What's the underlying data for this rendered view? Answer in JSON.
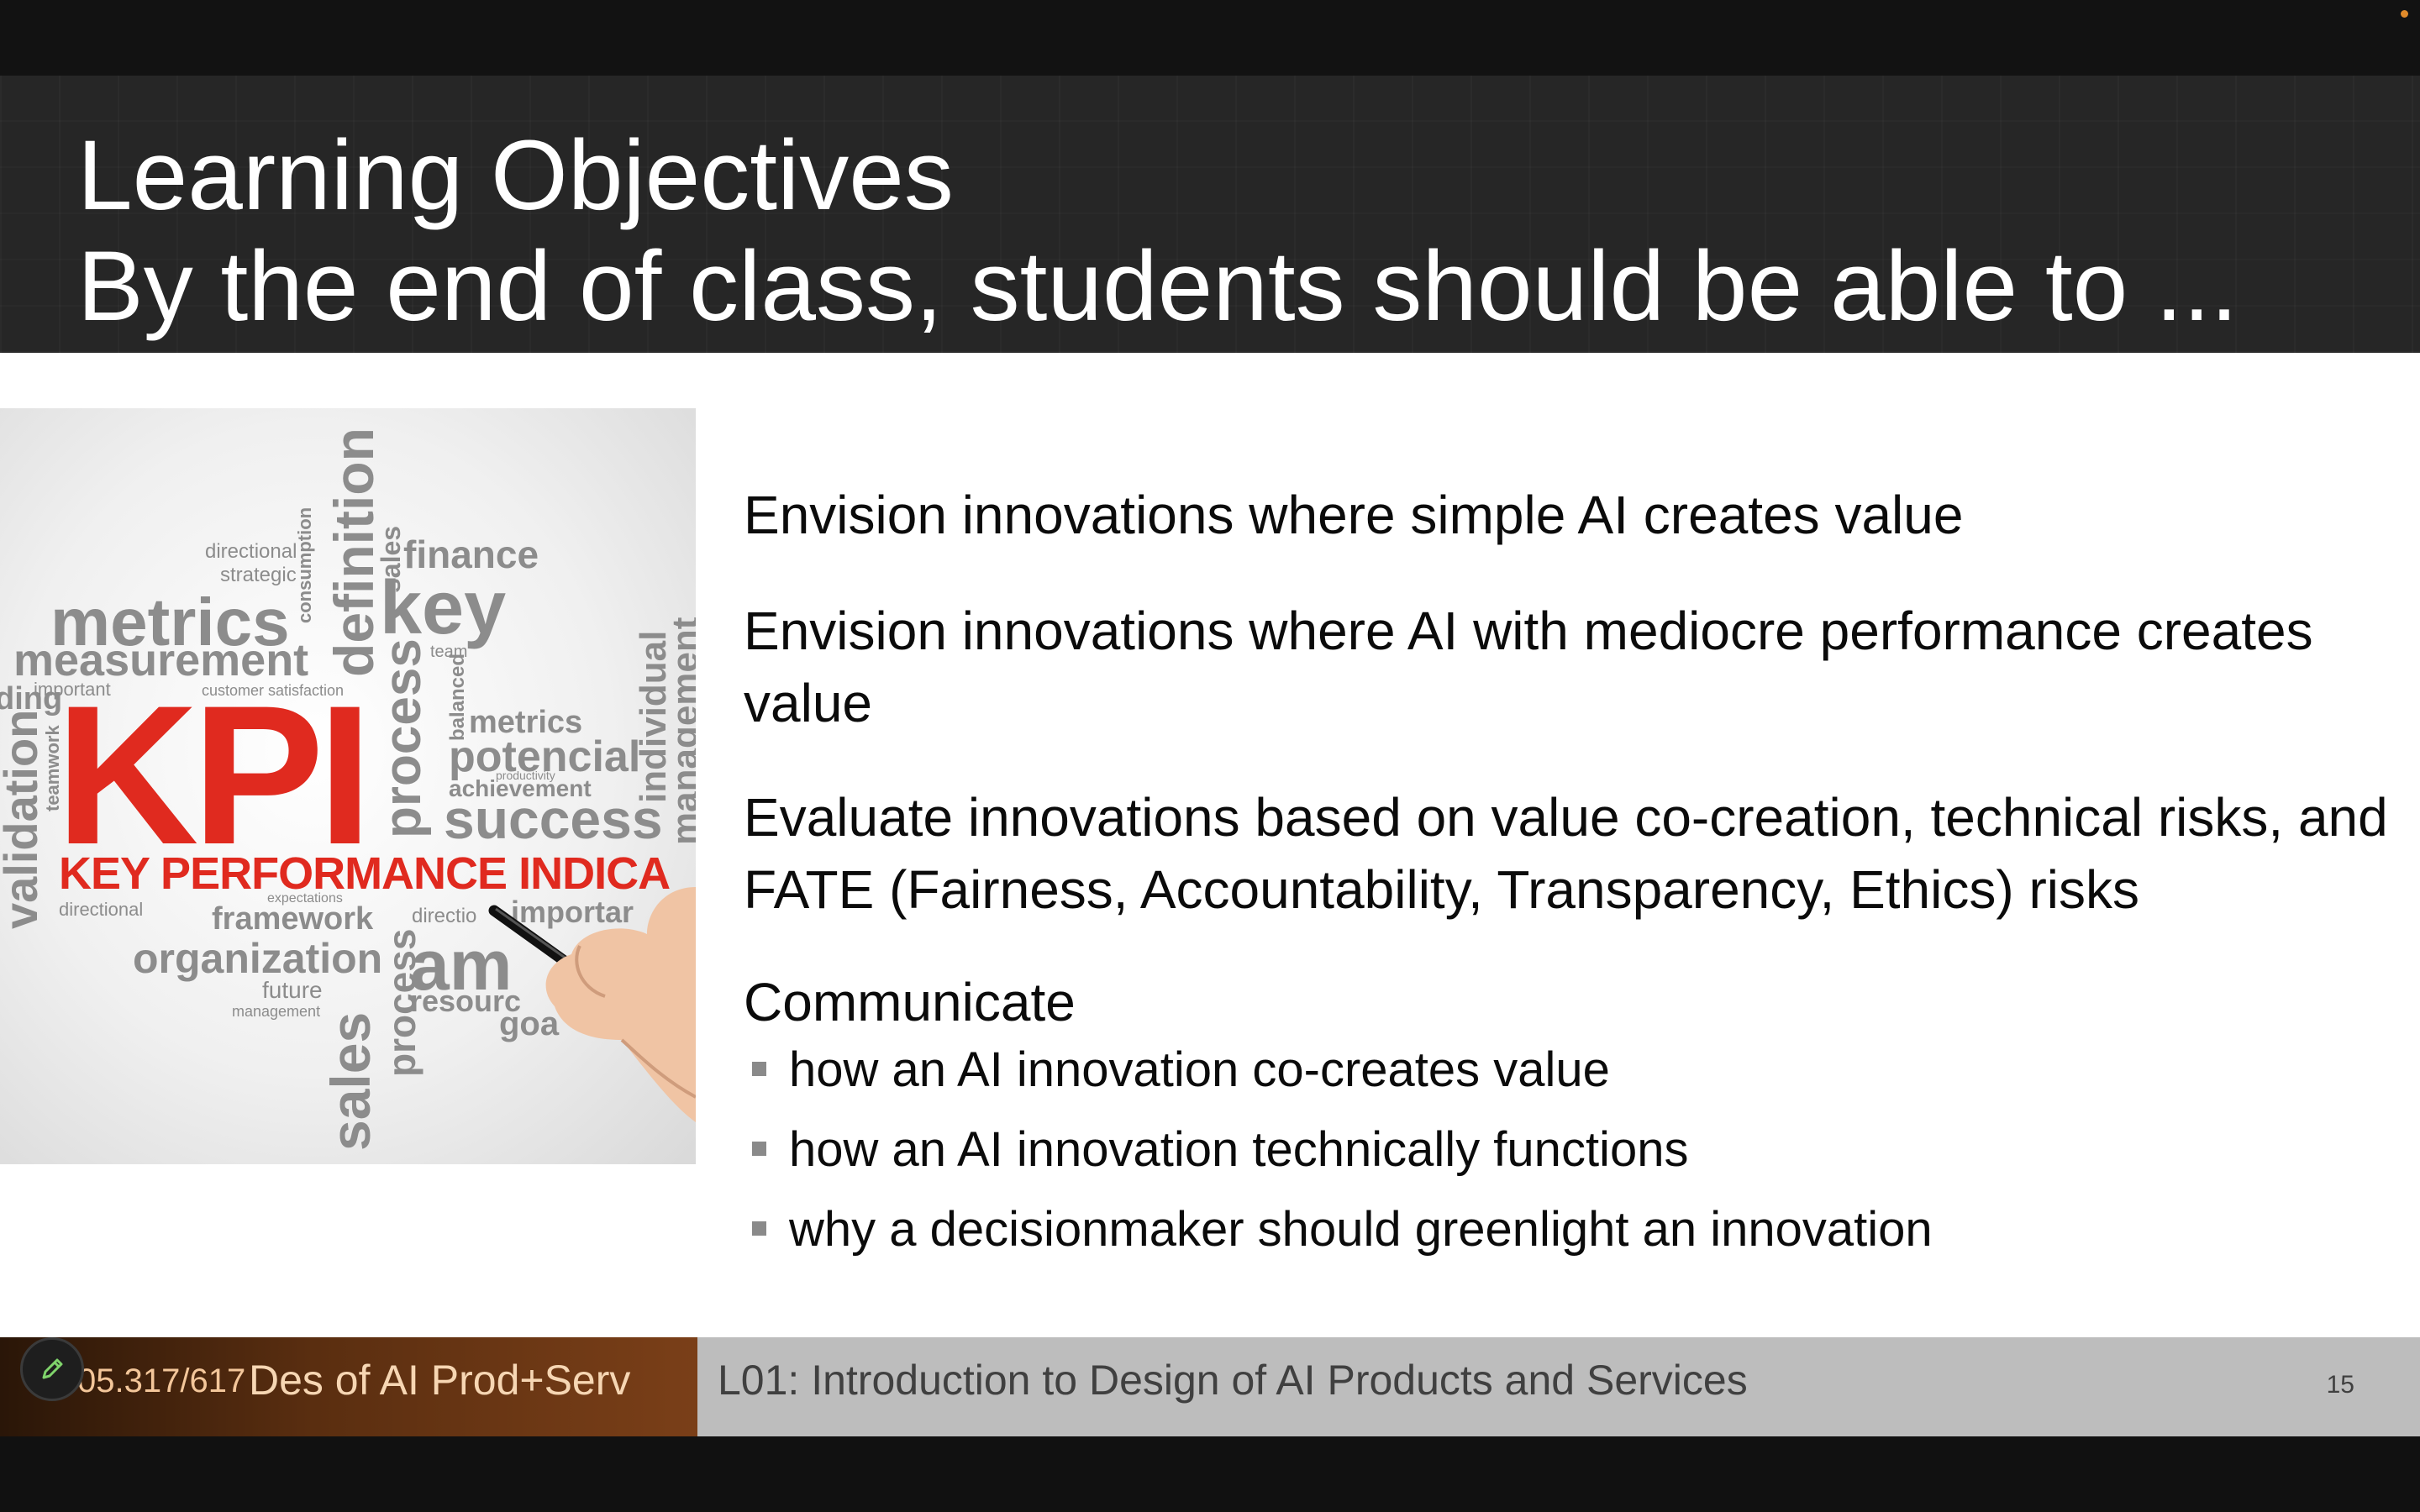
{
  "slide": {
    "title_line1": "Learning Objectives",
    "title_line2": "By the end of class, students should be able to ...",
    "objectives": [
      "Envision innovations where simple AI creates value",
      "Envision innovations where AI with mediocre performance creates value",
      "Evaluate innovations based on value co-creation, technical risks, and FATE (Fairness, Accountability, Transparency, Ethics) risks",
      "Communicate"
    ],
    "communicate_items": [
      "how an AI innovation co-creates value",
      "how an AI innovation technically functions",
      "why a decisionmaker should greenlight an innovation"
    ],
    "image": {
      "main_word": "KPI",
      "banner": "KEY PERFORMANCE INDICA",
      "words": {
        "metrics": "metrics",
        "measurement": "measurement",
        "definition": "definition",
        "finance": "finance",
        "key": "key",
        "process": "process",
        "metrics2": "metrics",
        "potencial": "potencial",
        "success": "success",
        "individual": "individual",
        "management": "management",
        "validation": "validation",
        "directional": "directional",
        "strategic": "strategic",
        "important": "important",
        "customer_satisfaction": "customer satisfaction",
        "sales": "sales",
        "team": "team",
        "achievement": "achievement",
        "framework": "framework",
        "organization": "organization",
        "future": "future",
        "resourc": "resourc",
        "goa": "goa",
        "am": "am",
        "expectations": "expectations",
        "productivity": "productivity",
        "teamwork": "teamwork",
        "balanced": "balanced",
        "consumption": "consumption",
        "ding": "ding",
        "directio": "directio",
        "importar": "importar"
      }
    }
  },
  "footer": {
    "course_code": "05.317/617",
    "course_name": "Des of AI Prod+Serv",
    "lecture_title": "L01: Introduction to Design of AI Products and Services",
    "page_number": "15"
  },
  "controls": {
    "annotate_icon": "pencil-icon",
    "recording_indicator_color": "#e08a2a"
  },
  "colors": {
    "kpi_red": "#e02a1f",
    "footer_brown": "#6a3614",
    "footer_gray": "#bdbdbd"
  }
}
